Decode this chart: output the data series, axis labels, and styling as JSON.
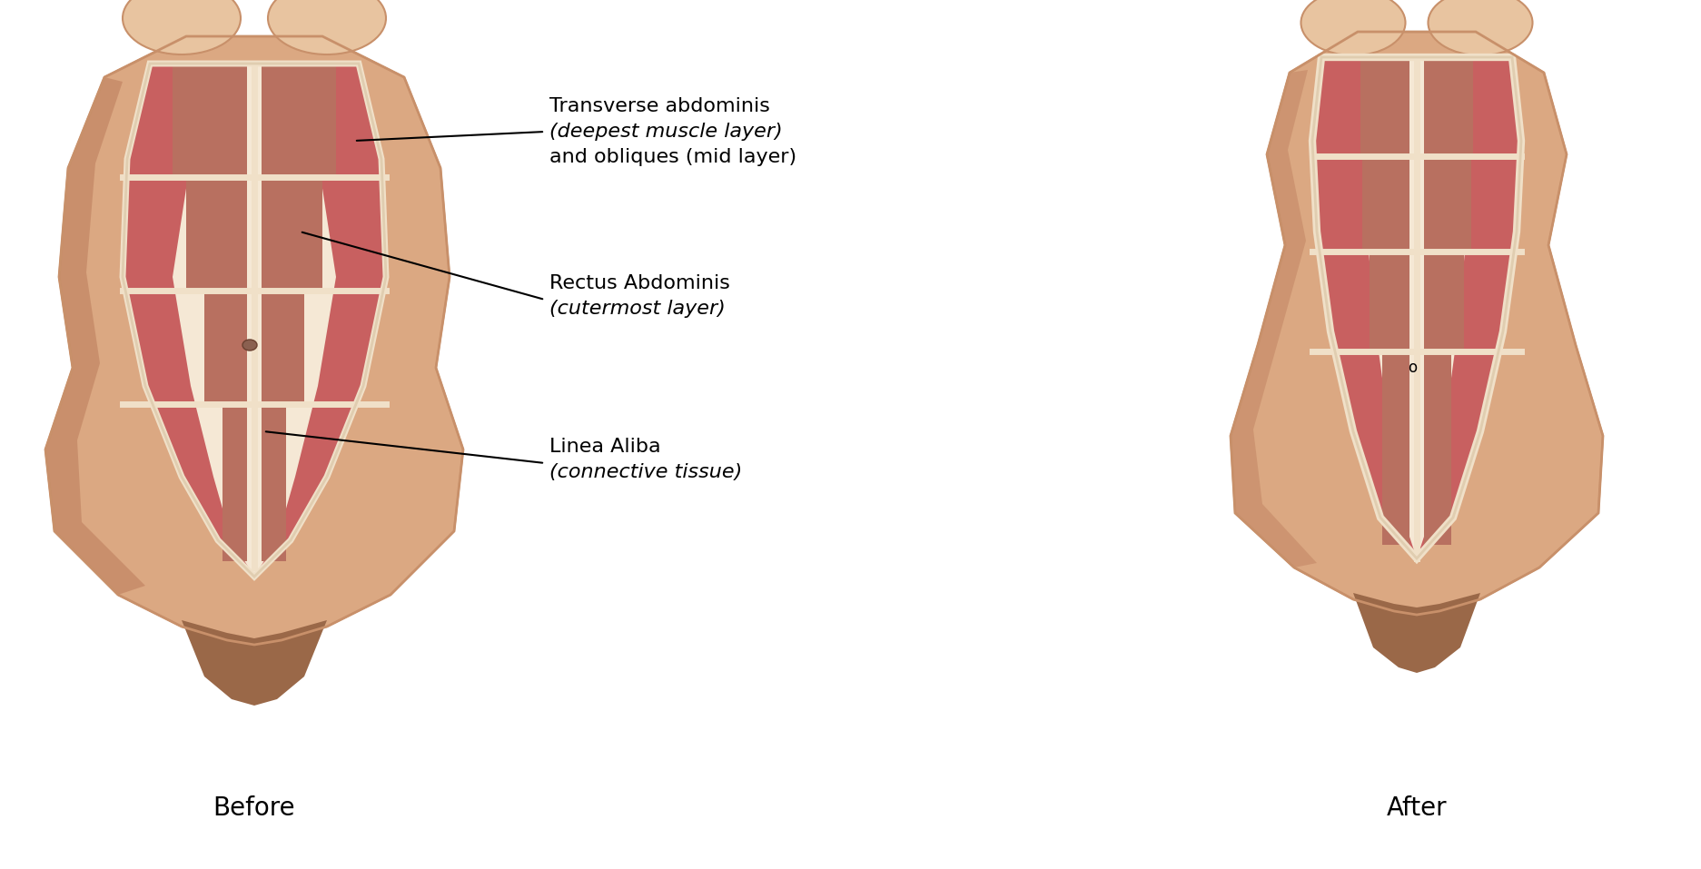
{
  "bg_color": "#ffffff",
  "skin_body": "#dba882",
  "skin_light": "#e8c4a0",
  "skin_shadow": "#c8906a",
  "skin_dark_shadow": "#b87858",
  "oblique_red": "#c86060",
  "oblique_light": "#d47878",
  "rectus_brown": "#b87060",
  "rectus_light": "#c88070",
  "linea_cream": "#f5e8d5",
  "linea_outline": "#e0cdb0",
  "groin_dark": "#9a6848",
  "navel_color": "#8a6050",
  "white_sep": "#f0e0c8",
  "before_label": "Before",
  "after_label": "After",
  "label1_line1": "Transverse abdominis",
  "label1_line2_italic": "(deepest muscle layer)",
  "label1_line3": "and obliques ",
  "label1_line3_italic": "(mid layer)",
  "label2_line1": "Rectus Abdominis",
  "label2_line2_italic": "(cutermost layer)",
  "label3_line1": "Linea Aliba",
  "label3_line2_italic": "(connective tissue)",
  "label_fontsize": 16,
  "before_after_fontsize": 20
}
